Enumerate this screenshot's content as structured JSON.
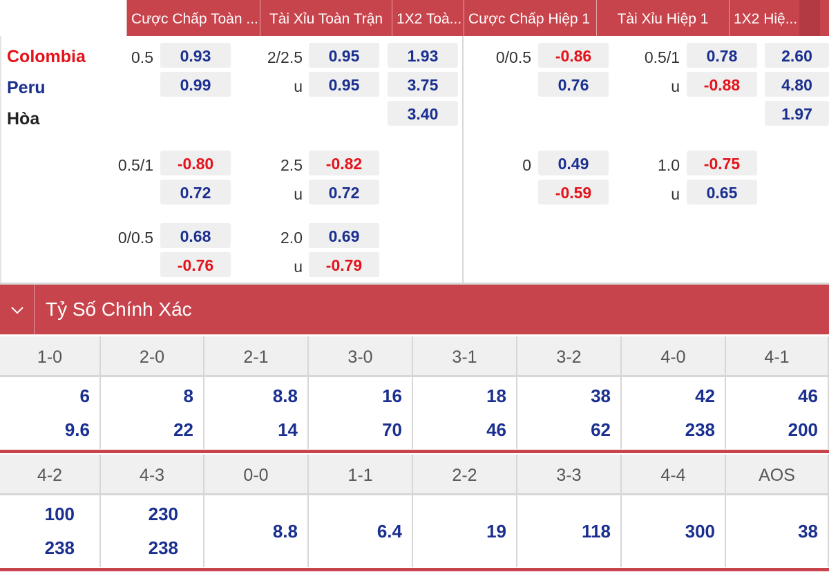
{
  "header": {
    "columns": [
      "Cược Chấp Toàn ...",
      "Tài Xỉu Toàn Trận",
      "1X2 Toà...",
      "Cược Chấp Hiệp 1",
      "Tài Xỉu Hiệp 1",
      "1X2 Hiệ..."
    ]
  },
  "teams": {
    "home": "Colombia",
    "away": "Peru",
    "draw": "Hòa"
  },
  "colors": {
    "accent": "#c8444c",
    "blue": "#1a2f8f",
    "red": "#e3131b"
  },
  "odds": {
    "rows": [
      {
        "ah_line": "0.5",
        "ah_home": "0.93",
        "ah_away": "0.99",
        "ou_line": "2/2.5",
        "ou_over": "0.95",
        "ou_u": "u",
        "ou_under": "0.95",
        "x12_home": "1.93",
        "x12_away": "3.75",
        "x12_draw": "3.40",
        "h1_ah_line": "0/0.5",
        "h1_ah_home": "-0.86",
        "h1_ah_away": "0.76",
        "h1_ou_line": "0.5/1",
        "h1_ou_over": "0.78",
        "h1_ou_u": "u",
        "h1_ou_under": "-0.88",
        "h1_x12_home": "2.60",
        "h1_x12_away": "4.80",
        "h1_x12_draw": "1.97"
      },
      {
        "ah_line": "0.5/1",
        "ah_home": "-0.80",
        "ah_away": "0.72",
        "ou_line": "2.5",
        "ou_over": "-0.82",
        "ou_u": "u",
        "ou_under": "0.72",
        "h1_ah_line": "0",
        "h1_ah_home": "0.49",
        "h1_ah_away": "-0.59",
        "h1_ou_line": "1.0",
        "h1_ou_over": "-0.75",
        "h1_ou_u": "u",
        "h1_ou_under": "0.65"
      },
      {
        "ah_line": "0/0.5",
        "ah_home": "0.68",
        "ah_away": "-0.76",
        "ou_line": "2.0",
        "ou_over": "0.69",
        "ou_u": "u",
        "ou_under": "-0.79"
      }
    ]
  },
  "correct_score": {
    "toggle_icon": "chevron-down-icon",
    "title": "Tỷ Số Chính Xác",
    "row1": {
      "labels": [
        "1-0",
        "2-0",
        "2-1",
        "3-0",
        "3-1",
        "3-2",
        "4-0",
        "4-1"
      ],
      "top": [
        "6",
        "8",
        "8.8",
        "16",
        "18",
        "38",
        "42",
        "46"
      ],
      "bottom": [
        "9.6",
        "22",
        "14",
        "70",
        "46",
        "62",
        "238",
        "200"
      ]
    },
    "row2": {
      "labels": [
        "4-2",
        "4-3",
        "0-0",
        "1-1",
        "2-2",
        "3-3",
        "4-4",
        "AOS"
      ],
      "top": [
        "100",
        "230",
        "",
        "",
        "",
        "",
        "",
        ""
      ],
      "bottom": [
        "238",
        "238",
        "",
        "",
        "",
        "",
        "",
        ""
      ],
      "single": [
        "",
        "",
        "8.8",
        "6.4",
        "19",
        "118",
        "300",
        "38"
      ]
    }
  }
}
